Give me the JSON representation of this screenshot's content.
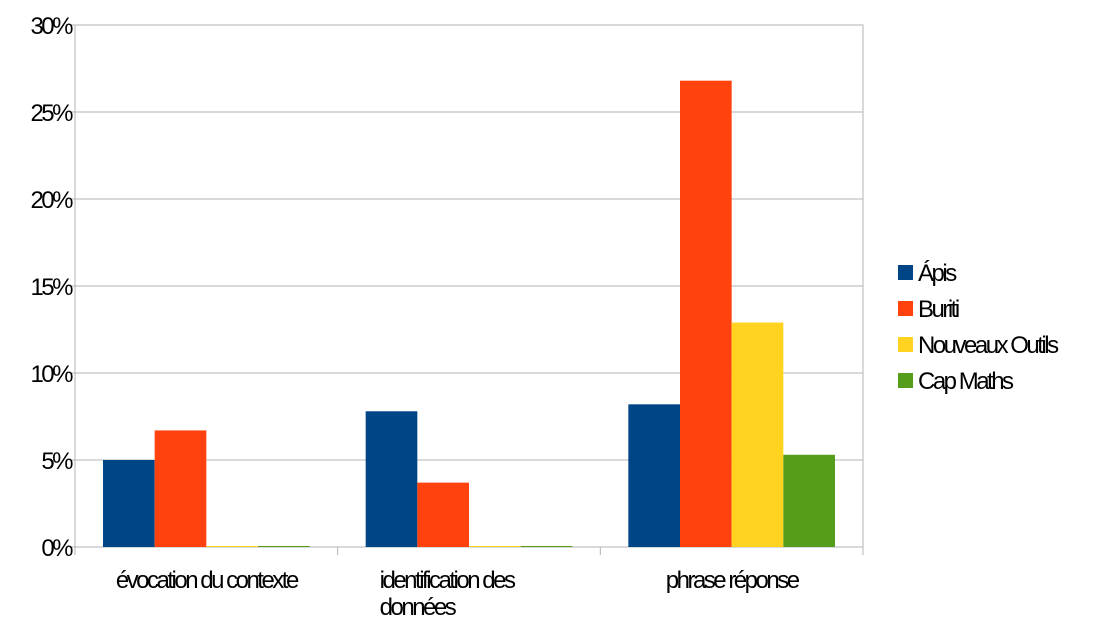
{
  "chart_data": {
    "type": "bar",
    "categories": [
      [
        "évocation du contexte"
      ],
      [
        "identification des",
        "données"
      ],
      [
        "phrase réponse"
      ]
    ],
    "series": [
      {
        "name": "Ápis",
        "color": "#004586",
        "values": [
          5.0,
          7.8,
          8.2
        ]
      },
      {
        "name": "Buriti",
        "color": "#ff420e",
        "values": [
          6.7,
          3.7,
          26.8
        ]
      },
      {
        "name": "Nouveaux Outils",
        "color": "#ffd320",
        "values": [
          0,
          0,
          12.9
        ]
      },
      {
        "name": "Cap Maths",
        "color": "#579d1c",
        "values": [
          0,
          0,
          5.3
        ]
      }
    ],
    "yticks": [
      "0%",
      "5%",
      "10%",
      "15%",
      "20%",
      "25%",
      "30%"
    ],
    "ylim": [
      0,
      30
    ],
    "grid": true,
    "legend_position": "right"
  }
}
